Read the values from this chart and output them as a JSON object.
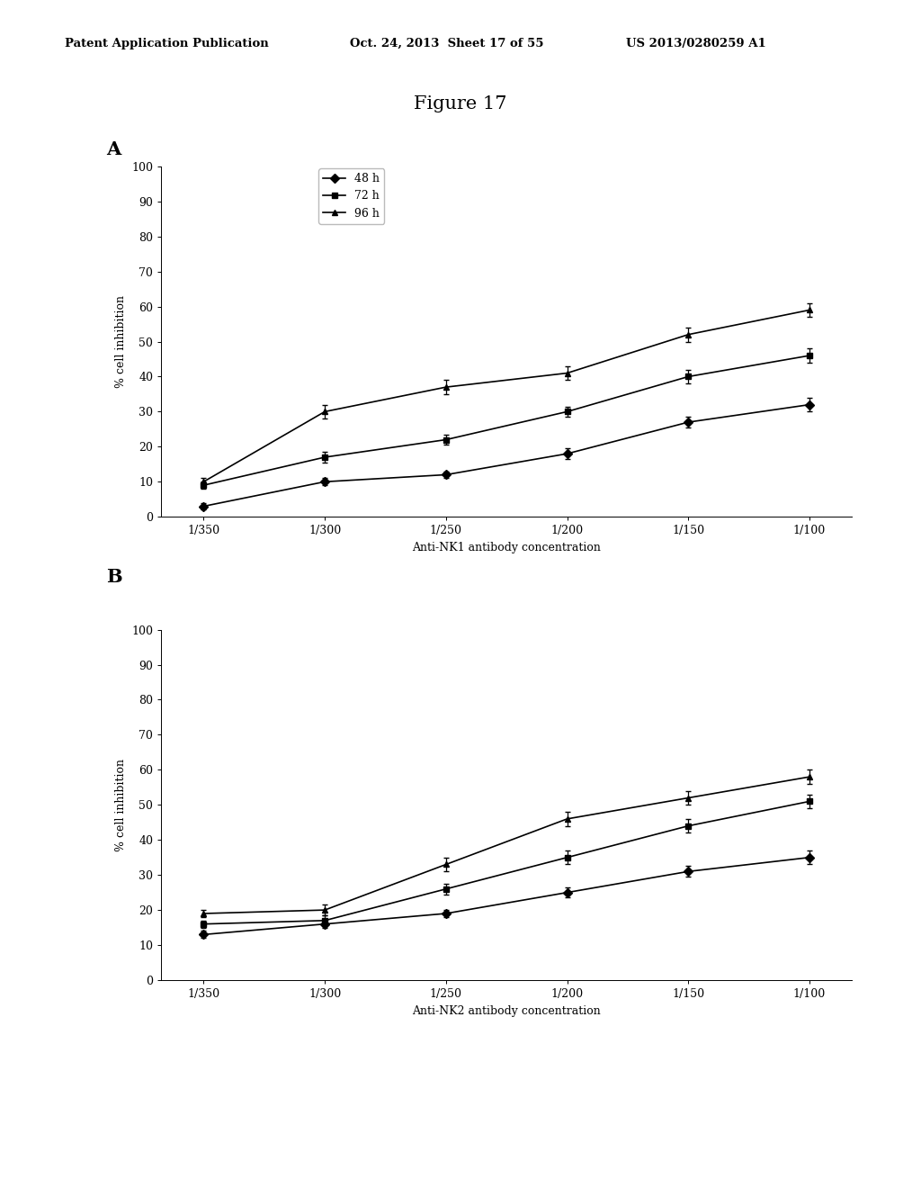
{
  "header_left": "Patent Application Publication",
  "header_mid": "Oct. 24, 2013  Sheet 17 of 55",
  "header_right": "US 2013/0280259 A1",
  "figure_title": "Figure 17",
  "x_labels": [
    "1/350",
    "1/300",
    "1/250",
    "1/200",
    "1/150",
    "1/100"
  ],
  "x_positions": [
    0,
    1,
    2,
    3,
    4,
    5
  ],
  "panel_A": {
    "label": "A",
    "xlabel": "Anti-NK1 antibody concentration",
    "ylabel": "% cell inhibition",
    "ylim": [
      0,
      100
    ],
    "yticks": [
      0,
      10,
      20,
      30,
      40,
      50,
      60,
      70,
      80,
      90,
      100
    ],
    "series": [
      {
        "label": "48 h",
        "marker": "D",
        "values": [
          3,
          10,
          12,
          18,
          27,
          32
        ],
        "errors": [
          0.8,
          1.0,
          1.0,
          1.5,
          1.5,
          2.0
        ]
      },
      {
        "label": "72 h",
        "marker": "s",
        "values": [
          9,
          17,
          22,
          30,
          40,
          46
        ],
        "errors": [
          1.0,
          1.5,
          1.5,
          1.5,
          2.0,
          2.0
        ]
      },
      {
        "label": "96 h",
        "marker": "^",
        "values": [
          10,
          30,
          37,
          41,
          52,
          59
        ],
        "errors": [
          1.0,
          2.0,
          2.0,
          2.0,
          2.0,
          2.0
        ]
      }
    ]
  },
  "panel_B": {
    "label": "B",
    "xlabel": "Anti-NK2 antibody concentration",
    "ylabel": "% cell inhibition",
    "ylim": [
      0,
      100
    ],
    "yticks": [
      0,
      10,
      20,
      30,
      40,
      50,
      60,
      70,
      80,
      90,
      100
    ],
    "series": [
      {
        "label": "48 h",
        "marker": "D",
        "values": [
          13,
          16,
          19,
          25,
          31,
          35
        ],
        "errors": [
          1.0,
          1.0,
          1.0,
          1.5,
          1.5,
          2.0
        ]
      },
      {
        "label": "72 h",
        "marker": "s",
        "values": [
          16,
          17,
          26,
          35,
          44,
          51
        ],
        "errors": [
          1.0,
          1.5,
          1.5,
          2.0,
          2.0,
          2.0
        ]
      },
      {
        "label": "96 h",
        "marker": "^",
        "values": [
          19,
          20,
          33,
          46,
          52,
          58
        ],
        "errors": [
          1.0,
          1.5,
          2.0,
          2.0,
          2.0,
          2.0
        ]
      }
    ]
  },
  "background_color": "#ffffff",
  "line_color": "#000000"
}
